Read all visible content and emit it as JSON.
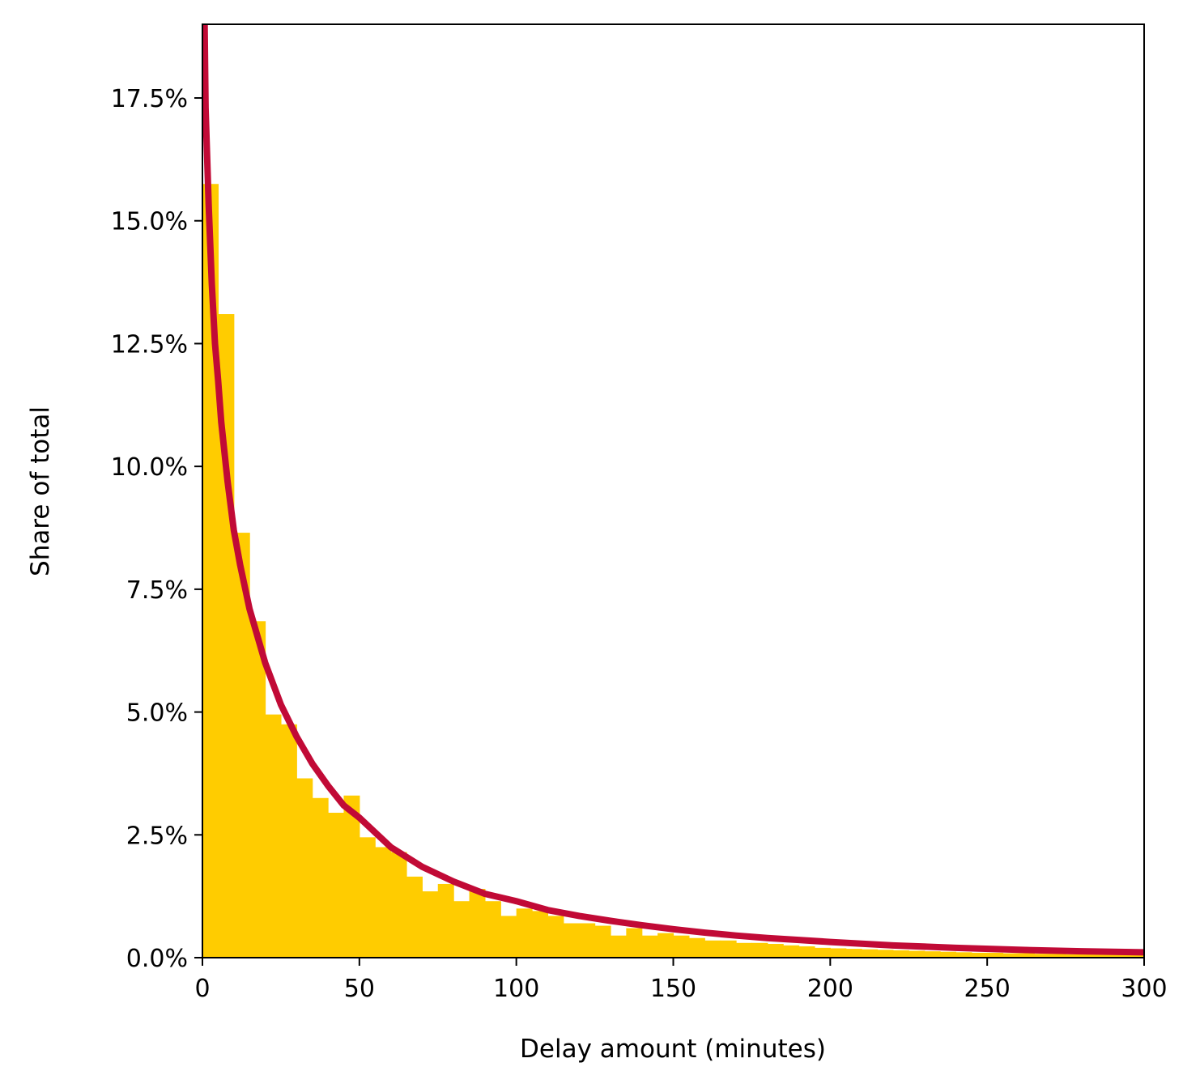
{
  "chart_data": {
    "type": "bar",
    "title": "",
    "xlabel": "Delay amount (minutes)",
    "ylabel": "Share of total",
    "xlim": [
      0,
      300
    ],
    "ylim": [
      0,
      0.19
    ],
    "grid": false,
    "x_ticks": [
      {
        "value": 0,
        "label": "0"
      },
      {
        "value": 50,
        "label": "50"
      },
      {
        "value": 100,
        "label": "100"
      },
      {
        "value": 150,
        "label": "150"
      },
      {
        "value": 200,
        "label": "200"
      },
      {
        "value": 250,
        "label": "250"
      },
      {
        "value": 300,
        "label": "300"
      }
    ],
    "y_ticks": [
      {
        "value": 0.0,
        "label": "0.0%"
      },
      {
        "value": 0.025,
        "label": "2.5%"
      },
      {
        "value": 0.05,
        "label": "5.0%"
      },
      {
        "value": 0.075,
        "label": "7.5%"
      },
      {
        "value": 0.1,
        "label": "10.0%"
      },
      {
        "value": 0.125,
        "label": "12.5%"
      },
      {
        "value": 0.15,
        "label": "15.0%"
      },
      {
        "value": 0.175,
        "label": "17.5%"
      }
    ],
    "histogram": {
      "color": "#ffcc00",
      "bin_width": 5,
      "bin_start": 0,
      "values": [
        0.1575,
        0.131,
        0.0865,
        0.0685,
        0.0495,
        0.0475,
        0.0365,
        0.0325,
        0.0295,
        0.033,
        0.0245,
        0.0225,
        0.0215,
        0.0165,
        0.0135,
        0.015,
        0.0115,
        0.014,
        0.0115,
        0.0085,
        0.01,
        0.0095,
        0.0085,
        0.007,
        0.007,
        0.0065,
        0.0045,
        0.006,
        0.0045,
        0.005,
        0.0045,
        0.004,
        0.0035,
        0.0035,
        0.003,
        0.003,
        0.0028,
        0.0025,
        0.0023,
        0.002,
        0.0019,
        0.0018,
        0.0017,
        0.0016,
        0.0015,
        0.0014,
        0.0013,
        0.0012,
        0.0011,
        0.001,
        0.001,
        0.0009,
        0.0009,
        0.0008,
        0.0008,
        0.0007,
        0.0007,
        0.0006,
        0.0006,
        0.0005
      ]
    },
    "fit_curve": {
      "color": "#c10a36",
      "x": [
        0.7,
        1,
        2,
        3,
        4,
        5,
        6,
        8,
        10,
        12,
        15,
        20,
        25,
        30,
        35,
        40,
        45,
        50,
        60,
        70,
        80,
        90,
        100,
        110,
        120,
        130,
        140,
        150,
        160,
        170,
        180,
        190,
        200,
        220,
        240,
        260,
        280,
        300
      ],
      "y": [
        0.19,
        0.173,
        0.153,
        0.137,
        0.125,
        0.1175,
        0.109,
        0.097,
        0.087,
        0.08,
        0.071,
        0.06,
        0.0515,
        0.045,
        0.0395,
        0.035,
        0.031,
        0.0285,
        0.0225,
        0.0185,
        0.0155,
        0.013,
        0.0115,
        0.0097,
        0.0085,
        0.0075,
        0.0066,
        0.0058,
        0.0051,
        0.0045,
        0.004,
        0.0036,
        0.0032,
        0.0025,
        0.002,
        0.0016,
        0.0013,
        0.0011
      ]
    }
  }
}
